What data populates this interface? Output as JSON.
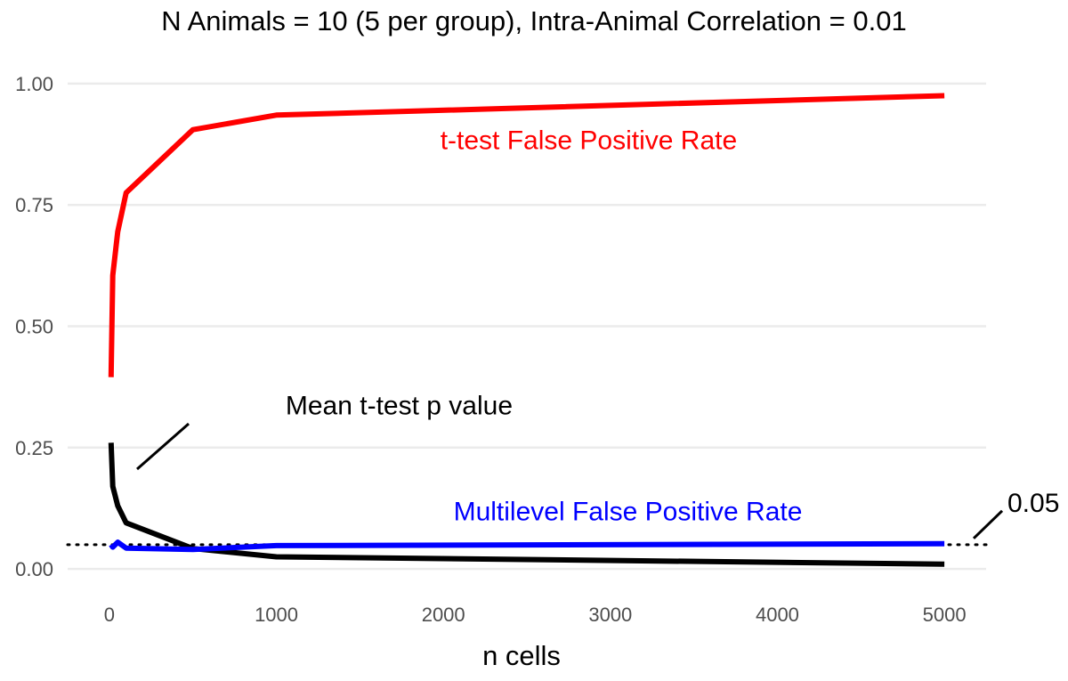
{
  "chart_data": {
    "type": "line",
    "title": "N Animals = 10 (5 per group), Intra-Animal Correlation = 0.01",
    "xlabel": "n cells",
    "ylabel": "",
    "xlim": [
      -250,
      5250
    ],
    "ylim": [
      -0.075,
      1.075
    ],
    "x_ticks": [
      0,
      1000,
      2000,
      3000,
      4000,
      5000
    ],
    "x_tick_labels": [
      "0",
      "1000",
      "2000",
      "3000",
      "4000",
      "5000"
    ],
    "y_ticks": [
      0,
      0.25,
      0.5,
      0.75,
      1.0
    ],
    "y_tick_labels": [
      "0.00",
      "0.25",
      "0.50",
      "0.75",
      "1.00"
    ],
    "grid": true,
    "series": [
      {
        "name": "t-test False Positive Rate",
        "color": "#ff0000",
        "x": [
          10,
          20,
          50,
          100,
          500,
          1000,
          5000
        ],
        "y": [
          0.395,
          0.605,
          0.695,
          0.775,
          0.905,
          0.935,
          0.975
        ]
      },
      {
        "name": "Mean t-test p value",
        "color": "#000000",
        "x": [
          10,
          20,
          50,
          100,
          500,
          1000,
          5000
        ],
        "y": [
          0.26,
          0.17,
          0.13,
          0.095,
          0.042,
          0.025,
          0.01
        ]
      },
      {
        "name": "Multilevel False Positive Rate",
        "color": "#0000ff",
        "x": [
          10,
          20,
          50,
          100,
          500,
          1000,
          5000
        ],
        "y": [
          0.05,
          0.045,
          0.055,
          0.043,
          0.04,
          0.048,
          0.052
        ]
      }
    ],
    "reference_line": {
      "y": 0.05,
      "label": "0.05",
      "style": "dotted",
      "color": "#000000"
    },
    "annotations": [
      {
        "text": "t-test False Positive Rate",
        "color": "#ff0000",
        "x": 2870,
        "y": 0.865
      },
      {
        "text": "Mean t-test p value",
        "color": "#000000",
        "x": 1735,
        "y": 0.318
      },
      {
        "text": "Multilevel False Positive Rate",
        "color": "#0000ff",
        "x": 3105,
        "y": 0.1
      }
    ]
  }
}
